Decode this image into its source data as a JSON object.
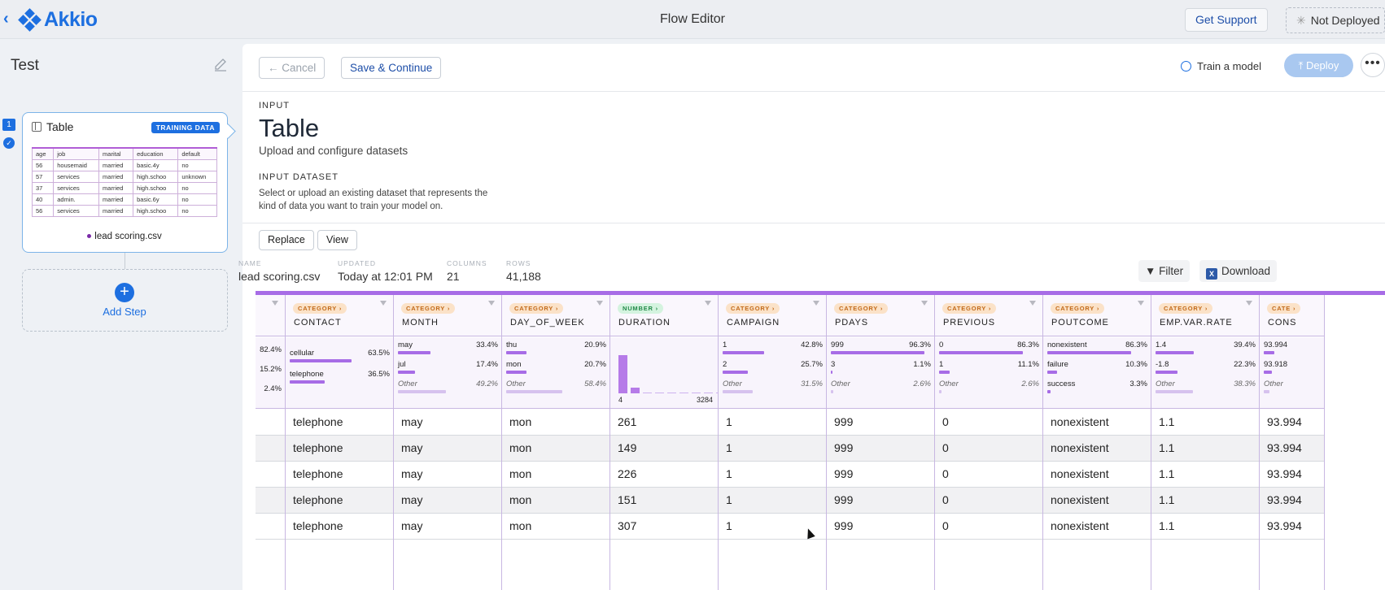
{
  "topbar": {
    "title": "Flow Editor",
    "logo_text": "Akkio",
    "support_label": "Get Support",
    "deploy_status": "Not Deployed",
    "back_icon": "chevron-left-icon"
  },
  "flow": {
    "name": "Test",
    "step_number": "1"
  },
  "step_card": {
    "title": "Table",
    "badge": "TRAINING DATA",
    "file": "lead scoring.csv",
    "mini_headers": [
      "age",
      "job",
      "marital",
      "education",
      "default"
    ],
    "mini_rows": [
      [
        "56",
        "housemaid",
        "married",
        "basic.4y",
        "no"
      ],
      [
        "57",
        "services",
        "married",
        "high.schoo",
        "unknown"
      ],
      [
        "37",
        "services",
        "married",
        "high.schoo",
        "no"
      ],
      [
        "40",
        "admin.",
        "married",
        "basic.6y",
        "no"
      ],
      [
        "56",
        "services",
        "married",
        "high.schoo",
        "no"
      ]
    ]
  },
  "add_step_label": "Add Step",
  "toolbar": {
    "cancel_label": "← Cancel",
    "save_label": "Save & Continue",
    "train_label": "Train a model",
    "deploy_label": "Deploy",
    "more_label": "•••"
  },
  "section": {
    "input_label": "INPUT",
    "heading": "Table",
    "subtitle": "Upload and configure datasets",
    "dataset_label": "INPUT DATASET",
    "dataset_desc": "Select or upload an existing dataset that represents the kind of data you want to train your model on.",
    "replace_label": "Replace",
    "view_label": "View"
  },
  "dataset_meta": [
    {
      "key": "NAME",
      "value": "lead scoring.csv"
    },
    {
      "key": "UPDATED",
      "value": "Today at 12:01 PM"
    },
    {
      "key": "COLUMNS",
      "value": "21"
    },
    {
      "key": "ROWS",
      "value": "41,188"
    }
  ],
  "filter_label": "Filter",
  "download_label": "Download",
  "grid": {
    "columns": [
      {
        "name": "",
        "tag": "",
        "stats": [
          {
            "label": "",
            "pct": "82.4%",
            "frac": 0
          },
          {
            "label": "",
            "pct": "15.2%",
            "frac": 0
          },
          {
            "label": "",
            "pct": "2.4%",
            "frac": 0
          }
        ]
      },
      {
        "name": "CONTACT",
        "tag": "CATEGORY",
        "stats": [
          {
            "label": "cellular",
            "pct": "63.5%",
            "frac": 0.635
          },
          {
            "label": "telephone",
            "pct": "36.5%",
            "frac": 0.365
          }
        ]
      },
      {
        "name": "MONTH",
        "tag": "CATEGORY",
        "stats": [
          {
            "label": "may",
            "pct": "33.4%",
            "frac": 0.334
          },
          {
            "label": "jul",
            "pct": "17.4%",
            "frac": 0.174
          },
          {
            "label": "Other",
            "pct": "49.2%",
            "frac": 0.492
          }
        ]
      },
      {
        "name": "DAY_OF_WEEK",
        "tag": "CATEGORY",
        "stats": [
          {
            "label": "thu",
            "pct": "20.9%",
            "frac": 0.209
          },
          {
            "label": "mon",
            "pct": "20.7%",
            "frac": 0.207
          },
          {
            "label": "Other",
            "pct": "58.4%",
            "frac": 0.584
          }
        ]
      },
      {
        "name": "DURATION",
        "tag": "NUMBER",
        "hist_min": "4",
        "hist_max": "3284",
        "hist": [
          0.84,
          0.13,
          0.02,
          0.01,
          0.005,
          0.005,
          0.004,
          0.003,
          0.002
        ]
      },
      {
        "name": "CAMPAIGN",
        "tag": "CATEGORY",
        "stats": [
          {
            "label": "1",
            "pct": "42.8%",
            "frac": 0.428
          },
          {
            "label": "2",
            "pct": "25.7%",
            "frac": 0.257
          },
          {
            "label": "Other",
            "pct": "31.5%",
            "frac": 0.315
          }
        ]
      },
      {
        "name": "PDAYS",
        "tag": "CATEGORY",
        "stats": [
          {
            "label": "999",
            "pct": "96.3%",
            "frac": 0.963
          },
          {
            "label": "3",
            "pct": "1.1%",
            "frac": 0.011
          },
          {
            "label": "Other",
            "pct": "2.6%",
            "frac": 0.026
          }
        ]
      },
      {
        "name": "PREVIOUS",
        "tag": "CATEGORY",
        "stats": [
          {
            "label": "0",
            "pct": "86.3%",
            "frac": 0.863
          },
          {
            "label": "1",
            "pct": "11.1%",
            "frac": 0.111
          },
          {
            "label": "Other",
            "pct": "2.6%",
            "frac": 0.026
          }
        ]
      },
      {
        "name": "POUTCOME",
        "tag": "CATEGORY",
        "stats": [
          {
            "label": "nonexistent",
            "pct": "86.3%",
            "frac": 0.863
          },
          {
            "label": "failure",
            "pct": "10.3%",
            "frac": 0.103
          },
          {
            "label": "success",
            "pct": "3.3%",
            "frac": 0.033
          }
        ]
      },
      {
        "name": "EMP.VAR.RATE",
        "tag": "CATEGORY",
        "stats": [
          {
            "label": "1.4",
            "pct": "39.4%",
            "frac": 0.394
          },
          {
            "label": "-1.8",
            "pct": "22.3%",
            "frac": 0.223
          },
          {
            "label": "Other",
            "pct": "38.3%",
            "frac": 0.383
          }
        ]
      },
      {
        "name": "CONS",
        "tag": "CATE",
        "stats": [
          {
            "label": "93.994",
            "pct": "",
            "frac": 0.2
          },
          {
            "label": "93.918",
            "pct": "",
            "frac": 0.15
          },
          {
            "label": "Other",
            "pct": "",
            "frac": 0.1
          }
        ]
      }
    ],
    "rows": [
      [
        "",
        "telephone",
        "may",
        "mon",
        "261",
        "1",
        "999",
        "0",
        "nonexistent",
        "1.1",
        "93.994"
      ],
      [
        "",
        "telephone",
        "may",
        "mon",
        "149",
        "1",
        "999",
        "0",
        "nonexistent",
        "1.1",
        "93.994"
      ],
      [
        "",
        "telephone",
        "may",
        "mon",
        "226",
        "1",
        "999",
        "0",
        "nonexistent",
        "1.1",
        "93.994"
      ],
      [
        "",
        "telephone",
        "may",
        "mon",
        "151",
        "1",
        "999",
        "0",
        "nonexistent",
        "1.1",
        "93.994"
      ],
      [
        "",
        "telephone",
        "may",
        "mon",
        "307",
        "1",
        "999",
        "0",
        "nonexistent",
        "1.1",
        "93.994"
      ]
    ]
  },
  "colors": {
    "accent": "#1d6fe0",
    "grid_accent": "#a76ce6",
    "category_tag": "#fbe2c8",
    "number_tag": "#d4f3df"
  }
}
